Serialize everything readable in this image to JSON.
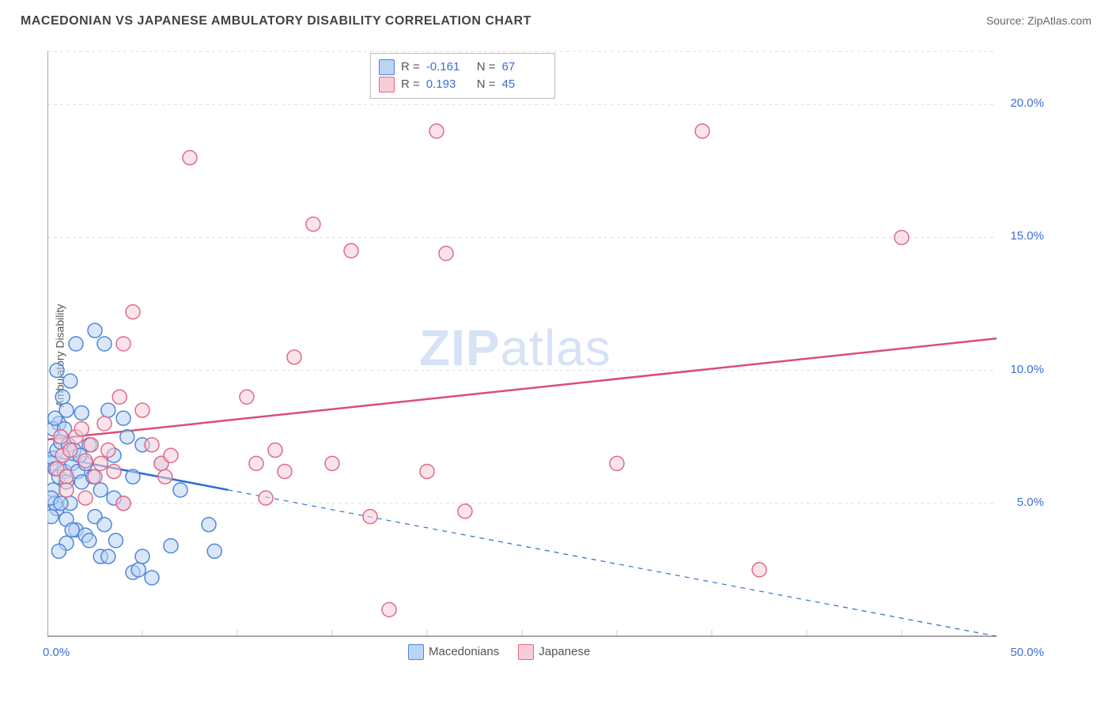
{
  "header": {
    "title": "MACEDONIAN VS JAPANESE AMBULATORY DISABILITY CORRELATION CHART",
    "source_prefix": "Source: ",
    "source_name": "ZipAtlas.com"
  },
  "chart": {
    "type": "scatter",
    "ylabel": "Ambulatory Disability",
    "background_color": "#ffffff",
    "grid_color": "#dddddd",
    "axis_color": "#888888",
    "tick_color": "#cccccc",
    "axis_label_color": "#3b6fd6",
    "x": {
      "min": 0,
      "max": 50,
      "origin_label": "0.0%",
      "end_label": "50.0%",
      "ticks": [
        5,
        10,
        15,
        20,
        25,
        30,
        35,
        40,
        45
      ]
    },
    "y": {
      "min": 0,
      "max": 22,
      "labels": [
        {
          "v": 5,
          "text": "5.0%"
        },
        {
          "v": 10,
          "text": "10.0%"
        },
        {
          "v": 15,
          "text": "15.0%"
        },
        {
          "v": 20,
          "text": "20.0%"
        }
      ]
    },
    "watermark": {
      "text_bold": "ZIP",
      "text_rest": "atlas",
      "color": "#d6e2f5"
    },
    "marker_radius": 9,
    "marker_stroke_width": 1.5,
    "trend_line_width": 2.5,
    "series": [
      {
        "id": "macedonians",
        "label": "Macedonians",
        "fill": "#b9d4f4",
        "stroke": "#4f86d9",
        "r_value": "-0.161",
        "n_value": "67",
        "trend": {
          "solid_to_x": 9.5,
          "y_at_0": 6.8,
          "y_at_50": 0.0,
          "color": "#2f6ed0"
        },
        "points": [
          [
            0.2,
            6.5
          ],
          [
            0.3,
            6.7
          ],
          [
            0.4,
            6.3
          ],
          [
            0.5,
            7.0
          ],
          [
            0.6,
            6.0
          ],
          [
            0.3,
            5.5
          ],
          [
            0.8,
            6.8
          ],
          [
            0.7,
            7.3
          ],
          [
            0.9,
            6.2
          ],
          [
            1.0,
            5.8
          ],
          [
            1.1,
            7.2
          ],
          [
            0.6,
            8.0
          ],
          [
            0.5,
            4.8
          ],
          [
            0.4,
            5.0
          ],
          [
            1.3,
            6.5
          ],
          [
            1.4,
            7.0
          ],
          [
            1.6,
            6.2
          ],
          [
            1.2,
            5.0
          ],
          [
            1.8,
            5.8
          ],
          [
            2.0,
            6.5
          ],
          [
            2.2,
            7.2
          ],
          [
            1.0,
            8.5
          ],
          [
            0.8,
            9.0
          ],
          [
            1.2,
            9.6
          ],
          [
            0.5,
            10.0
          ],
          [
            1.5,
            11.0
          ],
          [
            2.5,
            11.5
          ],
          [
            3.0,
            11.0
          ],
          [
            1.8,
            8.4
          ],
          [
            3.2,
            8.5
          ],
          [
            4.0,
            8.2
          ],
          [
            3.5,
            6.8
          ],
          [
            4.2,
            7.5
          ],
          [
            4.5,
            6.0
          ],
          [
            5.0,
            7.2
          ],
          [
            4.0,
            5.0
          ],
          [
            2.5,
            4.5
          ],
          [
            3.0,
            4.2
          ],
          [
            3.6,
            3.6
          ],
          [
            1.5,
            4.0
          ],
          [
            2.0,
            3.8
          ],
          [
            2.2,
            3.6
          ],
          [
            1.0,
            3.5
          ],
          [
            0.6,
            3.2
          ],
          [
            2.8,
            3.0
          ],
          [
            3.2,
            3.0
          ],
          [
            4.5,
            2.4
          ],
          [
            4.8,
            2.5
          ],
          [
            5.0,
            3.0
          ],
          [
            5.5,
            2.2
          ],
          [
            6.5,
            3.4
          ],
          [
            8.5,
            4.2
          ],
          [
            8.8,
            3.2
          ],
          [
            7.0,
            5.5
          ],
          [
            6.0,
            6.5
          ],
          [
            0.2,
            4.5
          ],
          [
            0.2,
            5.2
          ],
          [
            0.3,
            7.8
          ],
          [
            0.4,
            8.2
          ],
          [
            0.7,
            5.0
          ],
          [
            1.0,
            4.4
          ],
          [
            1.3,
            4.0
          ],
          [
            1.7,
            6.8
          ],
          [
            2.4,
            6.0
          ],
          [
            2.8,
            5.5
          ],
          [
            3.5,
            5.2
          ],
          [
            0.9,
            7.8
          ]
        ]
      },
      {
        "id": "japanese",
        "label": "Japanese",
        "fill": "#f6cdd7",
        "stroke": "#e06a8b",
        "r_value": "0.193",
        "n_value": "45",
        "trend": {
          "solid_to_x": 50,
          "y_at_0": 7.4,
          "y_at_50": 11.2,
          "color": "#db4d78"
        },
        "points": [
          [
            0.5,
            6.3
          ],
          [
            0.8,
            6.8
          ],
          [
            1.0,
            6.0
          ],
          [
            1.2,
            7.0
          ],
          [
            1.5,
            7.5
          ],
          [
            1.8,
            7.8
          ],
          [
            2.0,
            6.6
          ],
          [
            2.3,
            7.2
          ],
          [
            2.5,
            6.0
          ],
          [
            2.8,
            6.5
          ],
          [
            3.0,
            8.0
          ],
          [
            3.2,
            7.0
          ],
          [
            3.5,
            6.2
          ],
          [
            3.8,
            9.0
          ],
          [
            4.0,
            11.0
          ],
          [
            4.5,
            12.2
          ],
          [
            5.0,
            8.5
          ],
          [
            5.5,
            7.2
          ],
          [
            6.0,
            6.5
          ],
          [
            6.5,
            6.8
          ],
          [
            7.5,
            18.0
          ],
          [
            10.5,
            9.0
          ],
          [
            11.0,
            6.5
          ],
          [
            12.0,
            7.0
          ],
          [
            12.5,
            6.2
          ],
          [
            13.0,
            10.5
          ],
          [
            14.0,
            15.5
          ],
          [
            15.0,
            6.5
          ],
          [
            16.0,
            14.5
          ],
          [
            17.0,
            4.5
          ],
          [
            18.0,
            1.0
          ],
          [
            20.0,
            6.2
          ],
          [
            21.0,
            14.4
          ],
          [
            22.0,
            4.7
          ],
          [
            20.5,
            19.0
          ],
          [
            30.0,
            6.5
          ],
          [
            34.5,
            19.0
          ],
          [
            37.5,
            2.5
          ],
          [
            45.0,
            15.0
          ],
          [
            1.0,
            5.5
          ],
          [
            2.0,
            5.2
          ],
          [
            4.0,
            5.0
          ],
          [
            11.5,
            5.2
          ],
          [
            6.2,
            6.0
          ],
          [
            0.7,
            7.5
          ]
        ]
      }
    ],
    "bottom_legend": {
      "items": [
        "macedonians",
        "japanese"
      ]
    }
  }
}
